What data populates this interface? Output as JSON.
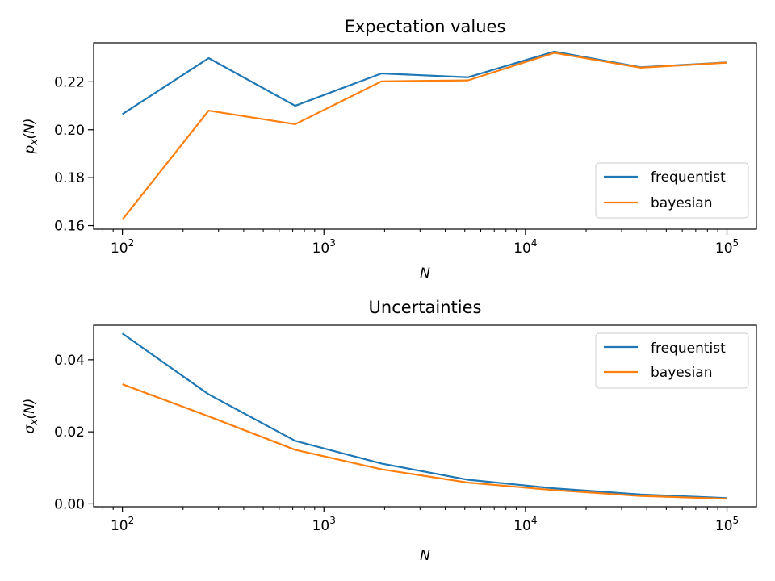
{
  "chart_data": [
    {
      "type": "line",
      "title": "Expectation values",
      "xlabel": "N",
      "ylabel": "p",
      "ylabel_sub": "x",
      "ylabel_arg": "(N)",
      "xscale": "log",
      "xlim": [
        72,
        140000
      ],
      "ylim": [
        0.1585,
        0.2363
      ],
      "xticks": [
        {
          "value": 100,
          "base": "10",
          "exp": "2"
        },
        {
          "value": 1000,
          "base": "10",
          "exp": "3"
        },
        {
          "value": 10000,
          "base": "10",
          "exp": "4"
        },
        {
          "value": 100000,
          "base": "10",
          "exp": "5"
        }
      ],
      "yticks": [
        {
          "value": 0.16,
          "label": "0.16"
        },
        {
          "value": 0.18,
          "label": "0.18"
        },
        {
          "value": 0.2,
          "label": "0.20"
        },
        {
          "value": 0.22,
          "label": "0.22"
        }
      ],
      "x": [
        100,
        268,
        720,
        1931,
        5179,
        13895,
        37276,
        100000
      ],
      "series": [
        {
          "name": "frequentist",
          "color": "#1f77b4",
          "values": [
            0.2065,
            0.2299,
            0.21,
            0.2235,
            0.2219,
            0.2326,
            0.2261,
            0.2281
          ]
        },
        {
          "name": "bayesian",
          "color": "#ff7f0e",
          "values": [
            0.1625,
            0.208,
            0.2023,
            0.2202,
            0.2206,
            0.2321,
            0.2259,
            0.228
          ]
        }
      ],
      "grid": false,
      "legend": "lower-right"
    },
    {
      "type": "line",
      "title": "Uncertainties",
      "xlabel": "N",
      "ylabel": "σ",
      "ylabel_sub": "x",
      "ylabel_arg": "(N)",
      "xscale": "log",
      "xlim": [
        72,
        140000
      ],
      "ylim": [
        -0.0008,
        0.0496
      ],
      "xticks": [
        {
          "value": 100,
          "base": "10",
          "exp": "2"
        },
        {
          "value": 1000,
          "base": "10",
          "exp": "3"
        },
        {
          "value": 10000,
          "base": "10",
          "exp": "4"
        },
        {
          "value": 100000,
          "base": "10",
          "exp": "5"
        }
      ],
      "yticks": [
        {
          "value": 0.0,
          "label": "0.00"
        },
        {
          "value": 0.02,
          "label": "0.02"
        },
        {
          "value": 0.04,
          "label": "0.04"
        }
      ],
      "x": [
        100,
        268,
        720,
        1931,
        5179,
        13895,
        37276,
        100000
      ],
      "series": [
        {
          "name": "frequentist",
          "color": "#1f77b4",
          "values": [
            0.0473,
            0.0304,
            0.0175,
            0.0112,
            0.0067,
            0.0043,
            0.0026,
            0.0016
          ]
        },
        {
          "name": "bayesian",
          "color": "#ff7f0e",
          "values": [
            0.0332,
            0.0243,
            0.015,
            0.0096,
            0.0059,
            0.0038,
            0.0022,
            0.0014
          ]
        }
      ],
      "grid": false,
      "legend": "upper-right"
    }
  ]
}
